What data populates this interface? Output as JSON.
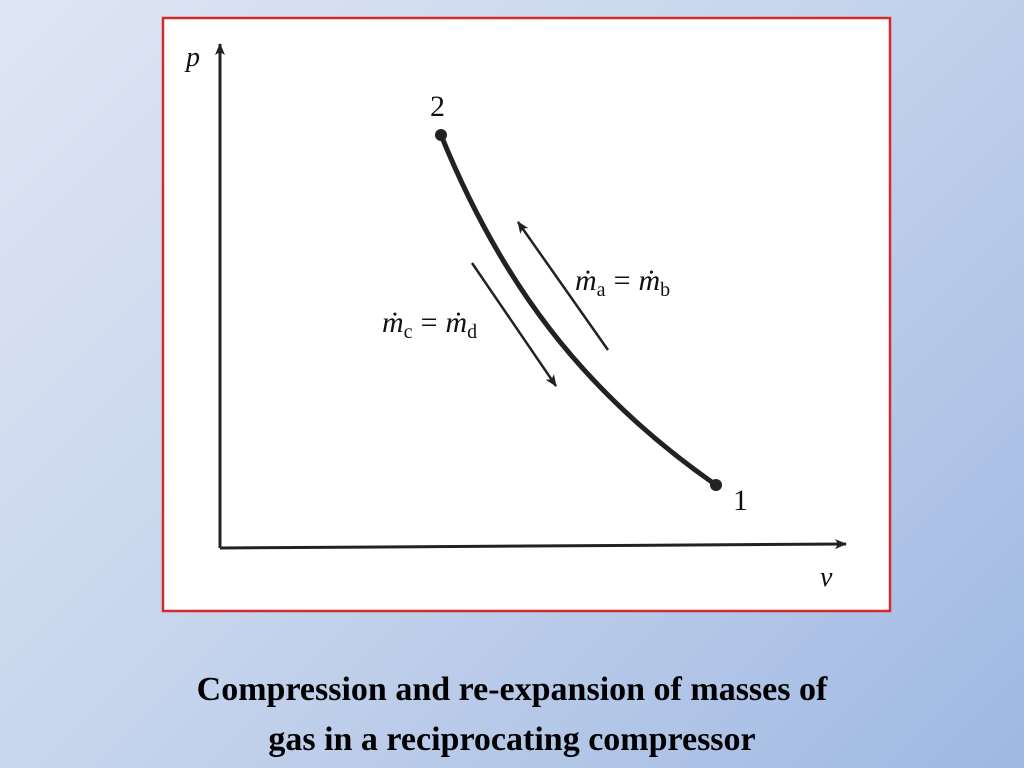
{
  "diagram": {
    "axes": {
      "y_label": "p",
      "x_label": "v"
    },
    "points": [
      {
        "label": "2"
      },
      {
        "label": "1"
      }
    ],
    "equations": [
      {
        "lhs": "ṁ",
        "lhs_sub": "a",
        "op": "=",
        "rhs": "ṁ",
        "rhs_sub": "b"
      },
      {
        "lhs": "ṁ",
        "lhs_sub": "c",
        "op": "=",
        "rhs": "ṁ",
        "rhs_sub": "d"
      }
    ]
  },
  "caption": {
    "lines": [
      "Compression and re-expansion of masses of",
      "gas in a reciprocating compressor"
    ]
  }
}
